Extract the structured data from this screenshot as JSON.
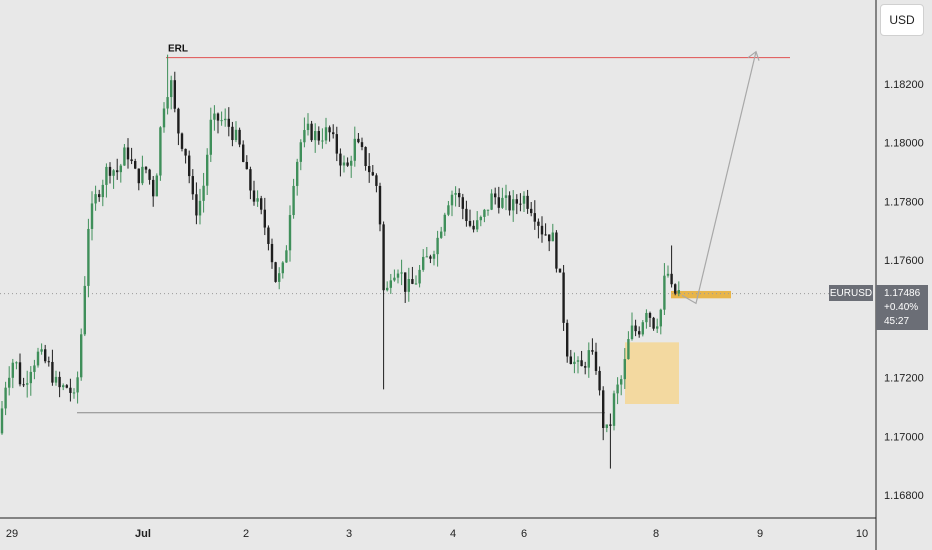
{
  "chart_data": {
    "type": "candlestick",
    "symbol": "EURUSD",
    "currency": "USD",
    "last_price": "1.17486",
    "change": "+0.40%",
    "countdown": "45:27",
    "y_ticks": [
      1.168,
      1.17,
      1.172,
      1.174,
      1.176,
      1.178,
      1.18,
      1.182
    ],
    "y_tick_labels": [
      "1.16800",
      "1.17000",
      "1.17200",
      "1.17400",
      "1.17600",
      "1.17800",
      "1.18000",
      "1.18200"
    ],
    "x_ticks": [
      "29",
      "Jul",
      "2",
      "3",
      "4",
      "6",
      "8",
      "9",
      "10"
    ],
    "ylim": [
      1.1675,
      1.184
    ],
    "annotations": {
      "erl": {
        "label": "ERL",
        "price": 1.1829,
        "color": "#e05252"
      },
      "low_level": {
        "price": 1.1708,
        "color": "#888888"
      },
      "demand_zone": {
        "top": 1.1732,
        "bottom": 1.1711,
        "color": "#f3d9a0"
      },
      "entry_zone": {
        "top": 1.17495,
        "bottom": 1.1747,
        "color": "#e8b54a"
      },
      "projection": {
        "from_price": 1.1748,
        "to_price": 1.1831
      }
    },
    "colors": {
      "up": "#3f8f5a",
      "down": "#1e1e1e",
      "grid": "#e8e8e8"
    }
  }
}
